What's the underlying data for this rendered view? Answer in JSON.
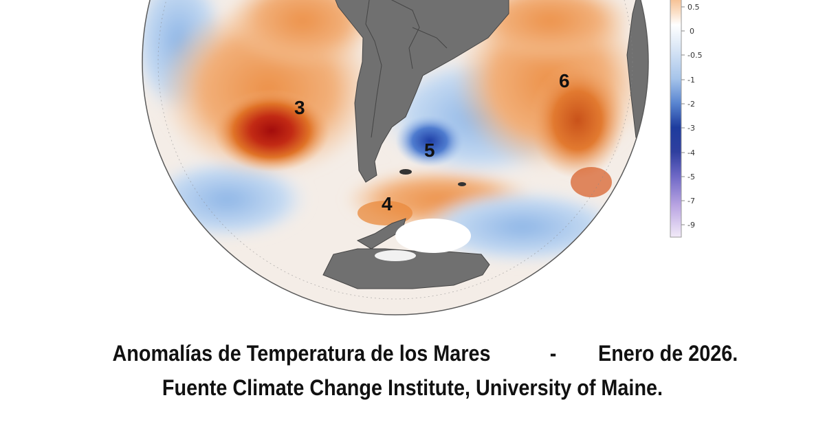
{
  "map": {
    "region_labels": [
      "3",
      "4",
      "5",
      "6"
    ],
    "colors": {
      "land": "#707070",
      "ocean_background": "#f3efec",
      "warm_light": "#f2b07a",
      "warm_strong": "#e0701f",
      "warm_peak": "#b01010",
      "cool_light": "#b9d2ef",
      "cool_strong": "#2a4fb8",
      "ice": "#ffffff"
    }
  },
  "colorbar": {
    "tick_labels": [
      "0.5",
      "0",
      "-0.5",
      "-1",
      "-2",
      "-3",
      "-4",
      "-5",
      "-7",
      "-9"
    ]
  },
  "caption": {
    "title": "Anomalías de Temperatura de los Mares",
    "separator": "-",
    "date": "Enero de 2026.",
    "source": "Fuente Climate Change Institute, University of Maine."
  }
}
